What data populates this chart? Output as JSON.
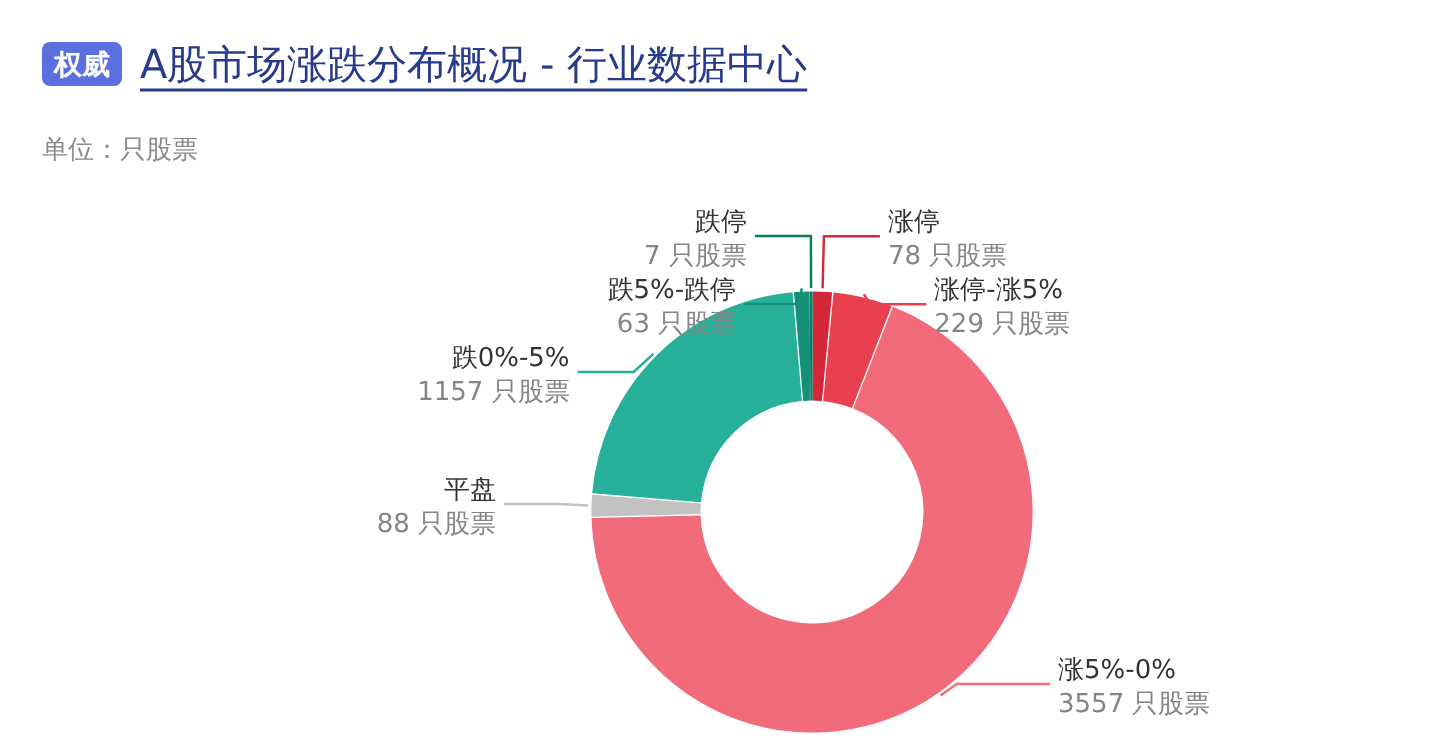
{
  "chart_data": {
    "type": "donut",
    "title": "A股市场涨跌分布概况 - 行业数据中心",
    "annotations": [
      "权威",
      "单位：只股票"
    ],
    "categories": [
      "涨停",
      "涨停-涨5%",
      "涨5%-0%",
      "平盘",
      "跌0%-5%",
      "跌5%-跌停",
      "跌停"
    ],
    "values": [
      78,
      229,
      3557,
      88,
      1157,
      63,
      7
    ],
    "value_labels": [
      "78 只股票",
      "229 只股票",
      "3557 只股票",
      "88 只股票",
      "1157 只股票",
      "63 只股票",
      "7 只股票"
    ],
    "colors": [
      "#d6263a",
      "#e8404f",
      "#f26b7b",
      "#c2c2c2",
      "#26b09a",
      "#139075",
      "#0b7a5f"
    ]
  }
}
